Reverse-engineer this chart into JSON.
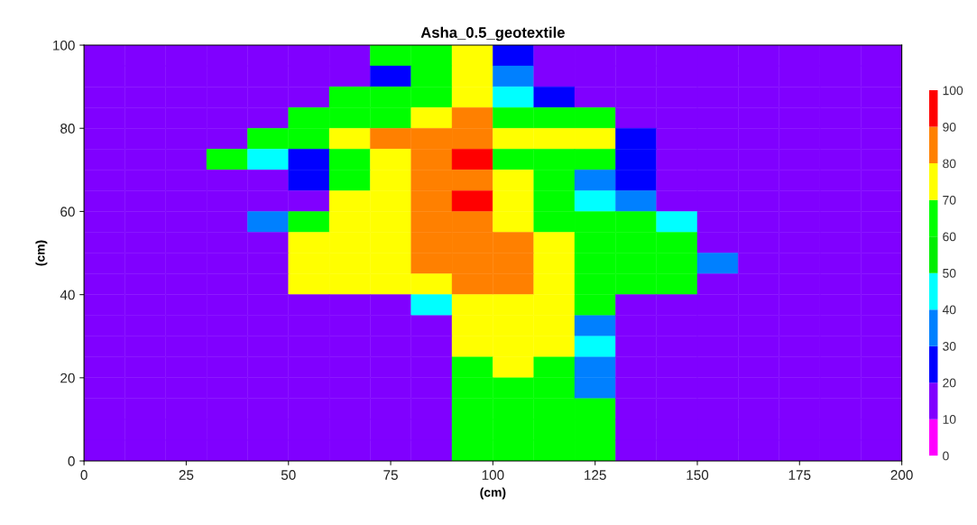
{
  "chart_data": {
    "type": "heatmap",
    "title": "Asha_0.5_geotextile",
    "xlabel": "(cm)",
    "ylabel": "(cm)",
    "x": [
      5,
      15,
      25,
      35,
      45,
      55,
      65,
      75,
      85,
      95,
      105,
      115,
      125,
      135,
      145,
      155,
      165,
      175,
      185,
      195
    ],
    "y": [
      97.5,
      92.5,
      87.5,
      82.5,
      77.5,
      72.5,
      67.5,
      62.5,
      57.5,
      52.5,
      47.5,
      42.5,
      37.5,
      32.5,
      27.5,
      22.5,
      17.5,
      12.5,
      7.5,
      2.5
    ],
    "xlim": [
      0,
      200
    ],
    "xticks": [
      0,
      25,
      50,
      75,
      100,
      125,
      150,
      175,
      200
    ],
    "ylim": [
      0,
      100
    ],
    "yticks": [
      0,
      20,
      40,
      60,
      80,
      100
    ],
    "clim": [
      0,
      100
    ],
    "cticks": [
      0,
      10,
      20,
      30,
      40,
      50,
      60,
      70,
      80,
      90,
      100
    ],
    "colors": [
      "#ff00ff",
      "#8000ff",
      "#0000ff",
      "#0080ff",
      "#00ffff",
      "#00ee00",
      "#00ff00",
      "#ffff00",
      "#ff8000",
      "#ff0000"
    ],
    "cells": [
      [
        15,
        15,
        15,
        15,
        15,
        15,
        15,
        65,
        65,
        75,
        25,
        15,
        15,
        15,
        15,
        15,
        15,
        15,
        15,
        15
      ],
      [
        15,
        15,
        15,
        15,
        15,
        15,
        15,
        25,
        65,
        75,
        35,
        15,
        15,
        15,
        15,
        15,
        15,
        15,
        15,
        15
      ],
      [
        15,
        15,
        15,
        15,
        15,
        15,
        65,
        65,
        65,
        75,
        45,
        25,
        15,
        15,
        15,
        15,
        15,
        15,
        15,
        15
      ],
      [
        15,
        15,
        15,
        15,
        15,
        65,
        65,
        65,
        75,
        85,
        65,
        65,
        65,
        15,
        15,
        15,
        15,
        15,
        15,
        15
      ],
      [
        15,
        15,
        15,
        15,
        65,
        65,
        75,
        85,
        85,
        85,
        75,
        75,
        75,
        25,
        15,
        15,
        15,
        15,
        15,
        15
      ],
      [
        15,
        15,
        15,
        65,
        45,
        25,
        65,
        75,
        85,
        95,
        65,
        65,
        65,
        25,
        15,
        15,
        15,
        15,
        15,
        15
      ],
      [
        15,
        15,
        15,
        15,
        15,
        25,
        65,
        75,
        85,
        85,
        75,
        65,
        35,
        25,
        15,
        15,
        15,
        15,
        15,
        15
      ],
      [
        15,
        15,
        15,
        15,
        15,
        15,
        75,
        75,
        85,
        95,
        75,
        65,
        45,
        35,
        15,
        15,
        15,
        15,
        15,
        15
      ],
      [
        15,
        15,
        15,
        15,
        35,
        65,
        75,
        75,
        85,
        85,
        75,
        65,
        65,
        65,
        45,
        15,
        15,
        15,
        15,
        15
      ],
      [
        15,
        15,
        15,
        15,
        15,
        75,
        75,
        75,
        85,
        85,
        85,
        75,
        65,
        65,
        65,
        15,
        15,
        15,
        15,
        15
      ],
      [
        15,
        15,
        15,
        15,
        15,
        75,
        75,
        75,
        85,
        85,
        85,
        75,
        65,
        65,
        65,
        35,
        15,
        15,
        15,
        15
      ],
      [
        15,
        15,
        15,
        15,
        15,
        75,
        75,
        75,
        75,
        85,
        85,
        75,
        65,
        65,
        65,
        15,
        15,
        15,
        15,
        15
      ],
      [
        15,
        15,
        15,
        15,
        15,
        15,
        15,
        15,
        45,
        75,
        75,
        75,
        65,
        15,
        15,
        15,
        15,
        15,
        15,
        15
      ],
      [
        15,
        15,
        15,
        15,
        15,
        15,
        15,
        15,
        15,
        75,
        75,
        75,
        35,
        15,
        15,
        15,
        15,
        15,
        15,
        15
      ],
      [
        15,
        15,
        15,
        15,
        15,
        15,
        15,
        15,
        15,
        75,
        75,
        75,
        45,
        15,
        15,
        15,
        15,
        15,
        15,
        15
      ],
      [
        15,
        15,
        15,
        15,
        15,
        15,
        15,
        15,
        15,
        65,
        75,
        65,
        35,
        15,
        15,
        15,
        15,
        15,
        15,
        15
      ],
      [
        15,
        15,
        15,
        15,
        15,
        15,
        15,
        15,
        15,
        65,
        65,
        65,
        35,
        15,
        15,
        15,
        15,
        15,
        15,
        15
      ],
      [
        15,
        15,
        15,
        15,
        15,
        15,
        15,
        15,
        15,
        65,
        65,
        65,
        65,
        15,
        15,
        15,
        15,
        15,
        15,
        15
      ],
      [
        15,
        15,
        15,
        15,
        15,
        15,
        15,
        15,
        15,
        65,
        65,
        65,
        65,
        15,
        15,
        15,
        15,
        15,
        15,
        15
      ],
      [
        15,
        15,
        15,
        15,
        15,
        15,
        15,
        15,
        15,
        65,
        65,
        65,
        65,
        15,
        15,
        15,
        15,
        15,
        15,
        15
      ]
    ]
  }
}
